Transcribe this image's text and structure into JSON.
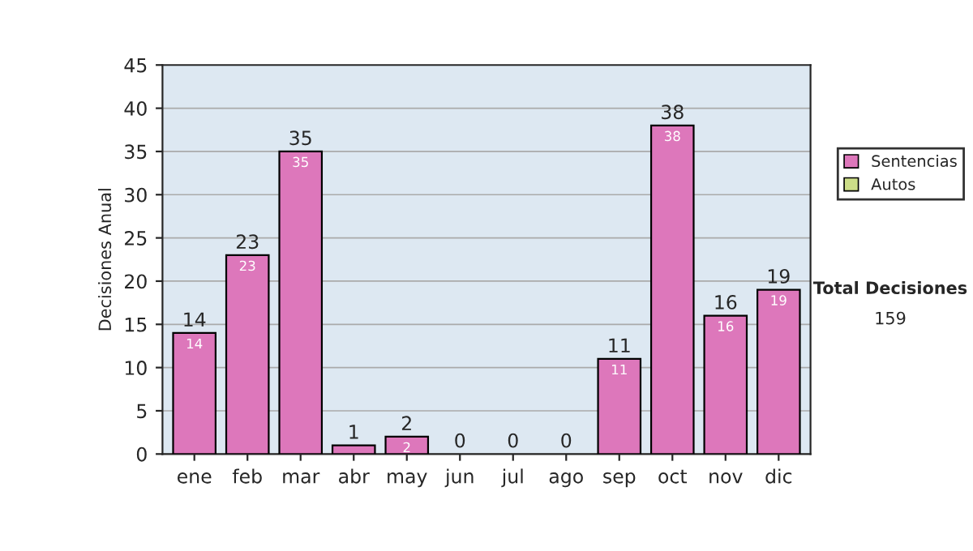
{
  "chart_data": {
    "type": "bar",
    "stacked": true,
    "ylabel": "Decisiones Anual",
    "categories": [
      "ene",
      "feb",
      "mar",
      "abr",
      "may",
      "jun",
      "jul",
      "ago",
      "sep",
      "oct",
      "nov",
      "dic"
    ],
    "series": [
      {
        "name": "Sentencias",
        "color": "#dd77bb",
        "values": [
          14,
          23,
          35,
          1,
          2,
          0,
          0,
          0,
          11,
          38,
          16,
          19
        ],
        "value_labels": [
          "14",
          "23",
          "35",
          null,
          "2",
          null,
          null,
          null,
          "11",
          "38",
          "16",
          "19"
        ]
      },
      {
        "name": "Autos",
        "color": "#ccdd88",
        "values": [
          0,
          0,
          0,
          0,
          0,
          0,
          0,
          0,
          0,
          0,
          0,
          0
        ]
      }
    ],
    "totals": [
      "14",
      "23",
      "35",
      "1",
      "2",
      "0",
      "0",
      "0",
      "11",
      "38",
      "16",
      "19"
    ],
    "ylim": [
      0,
      45
    ],
    "yticks": [
      0,
      5,
      10,
      15,
      20,
      25,
      30,
      35,
      40,
      45
    ],
    "grid": "y",
    "legend": "right",
    "annotations": [
      "Total Decisiones",
      "159"
    ]
  }
}
